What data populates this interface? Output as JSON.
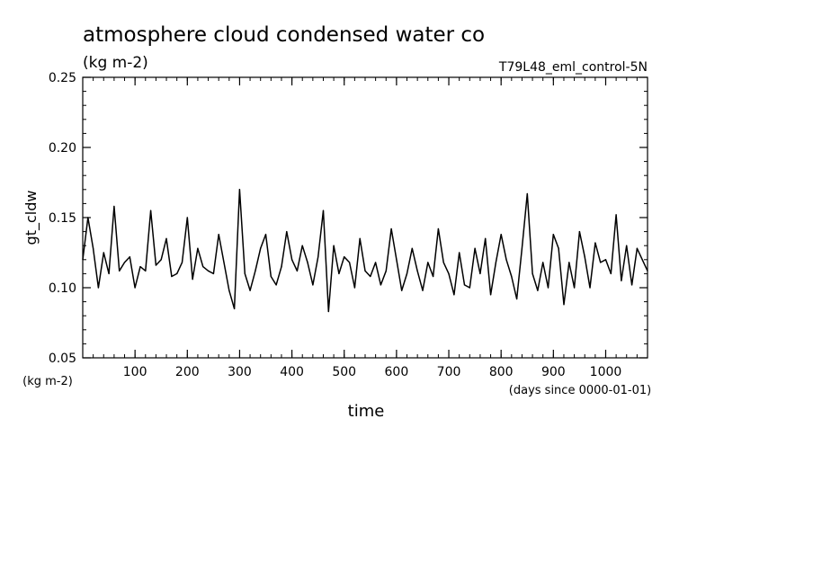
{
  "chart_data": {
    "type": "line",
    "title": "atmosphere cloud condensed water co",
    "subtitle": "(kg m-2)",
    "experiment": "T79L48_eml_control-5N",
    "xlabel": "time",
    "x_units": "(days since 0000-01-01)",
    "ylabel": "gt_cldw",
    "y_units": "(kg m-2)",
    "xlim": [
      0,
      1080
    ],
    "ylim": [
      0.05,
      0.25
    ],
    "xticks": [
      "100",
      "200",
      "300",
      "400",
      "500",
      "600",
      "700",
      "800",
      "900",
      "1000"
    ],
    "yticks": [
      "0.05",
      "0.10",
      "0.15",
      "0.20",
      "0.25"
    ],
    "grid": false,
    "series": [
      {
        "values_x": [
          0,
          10,
          20,
          30,
          40,
          50,
          60,
          70,
          80,
          90,
          100,
          110,
          120,
          130,
          140,
          150,
          160,
          170,
          180,
          190,
          200,
          210,
          220,
          230,
          240,
          250,
          260,
          270,
          280,
          290,
          300,
          310,
          320,
          330,
          340,
          350,
          360,
          370,
          380,
          390,
          400,
          410,
          420,
          430,
          440,
          450,
          460,
          470,
          480,
          490,
          500,
          510,
          520,
          530,
          540,
          550,
          560,
          570,
          580,
          590,
          600,
          610,
          620,
          630,
          640,
          650,
          660,
          670,
          680,
          690,
          700,
          710,
          720,
          730,
          740,
          750,
          760,
          770,
          780,
          790,
          800,
          810,
          820,
          830,
          840,
          850,
          860,
          870,
          880,
          890,
          900,
          910,
          920,
          930,
          940,
          950,
          960,
          970,
          980,
          990,
          1000,
          1010,
          1020,
          1030,
          1040,
          1050,
          1060,
          1070,
          1080
        ],
        "values_y": [
          0.12,
          0.15,
          0.128,
          0.1,
          0.125,
          0.11,
          0.158,
          0.112,
          0.118,
          0.122,
          0.1,
          0.115,
          0.112,
          0.155,
          0.116,
          0.12,
          0.135,
          0.108,
          0.11,
          0.118,
          0.15,
          0.106,
          0.128,
          0.115,
          0.112,
          0.11,
          0.138,
          0.118,
          0.098,
          0.085,
          0.17,
          0.11,
          0.098,
          0.112,
          0.128,
          0.138,
          0.108,
          0.102,
          0.115,
          0.14,
          0.12,
          0.112,
          0.13,
          0.118,
          0.102,
          0.122,
          0.155,
          0.083,
          0.13,
          0.11,
          0.122,
          0.118,
          0.1,
          0.135,
          0.112,
          0.108,
          0.118,
          0.102,
          0.112,
          0.142,
          0.12,
          0.098,
          0.11,
          0.128,
          0.112,
          0.098,
          0.118,
          0.108,
          0.142,
          0.118,
          0.11,
          0.095,
          0.125,
          0.102,
          0.1,
          0.128,
          0.11,
          0.135,
          0.095,
          0.118,
          0.138,
          0.12,
          0.108,
          0.092,
          0.128,
          0.167,
          0.11,
          0.098,
          0.118,
          0.1,
          0.138,
          0.128,
          0.088,
          0.118,
          0.1,
          0.14,
          0.122,
          0.1,
          0.132,
          0.118,
          0.12,
          0.11,
          0.152,
          0.105,
          0.13,
          0.102,
          0.128,
          0.12,
          0.112
        ]
      }
    ]
  }
}
